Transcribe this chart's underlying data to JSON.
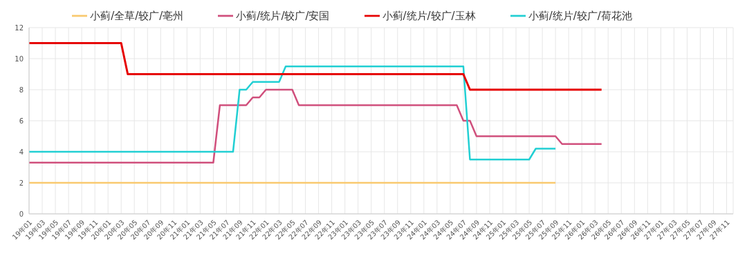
{
  "chart_data": {
    "type": "line",
    "categories": [
      "19年01",
      null,
      "19年03",
      null,
      "19年05",
      null,
      "19年07",
      null,
      "19年09",
      null,
      "19年11",
      null,
      "20年01",
      null,
      "20年03",
      null,
      "20年05",
      null,
      "20年07",
      null,
      "20年09",
      null,
      "20年11",
      null,
      "21年01",
      null,
      "21年03",
      null,
      "21年05",
      null,
      "21年07",
      null,
      "21年09",
      null,
      "21年11",
      null,
      "22年01",
      null,
      "22年03",
      null,
      "22年05",
      null,
      "22年07",
      null,
      "22年09",
      null,
      "22年11",
      null,
      "23年01",
      null,
      "23年03",
      null,
      "23年05",
      null,
      "23年07",
      null,
      "23年09",
      null,
      "23年11",
      null,
      "24年01",
      null,
      "24年03",
      null,
      "24年05",
      null,
      "24年07",
      null,
      "24年09",
      null,
      "24年11",
      null,
      "25年01",
      null,
      "25年03",
      null,
      "25年05",
      null,
      "25年07",
      null,
      "25年09",
      null,
      "25年11",
      null,
      "26年01",
      null,
      "26年03",
      null,
      "26年05",
      null,
      "26年07",
      null,
      "26年09",
      null,
      "26年11",
      null,
      "27年01",
      null,
      "27年03",
      null,
      "27年05",
      null,
      "27年07",
      null,
      "27年09",
      null,
      "27年11",
      null
    ],
    "series": [
      {
        "name": "小蓟/全草/较广/亳州",
        "color": "#f9c96e",
        "values": [
          2,
          2,
          2,
          2,
          2,
          2,
          2,
          2,
          2,
          2,
          2,
          2,
          2,
          2,
          2,
          2,
          2,
          2,
          2,
          2,
          2,
          2,
          2,
          2,
          2,
          2,
          2,
          2,
          2,
          2,
          2,
          2,
          2,
          2,
          2,
          2,
          2,
          2,
          2,
          2,
          2,
          2,
          2,
          2,
          2,
          2,
          2,
          2,
          2,
          2,
          2,
          2,
          2,
          2,
          2,
          2,
          2,
          2,
          2,
          2,
          2,
          2,
          2,
          2,
          2,
          2,
          2,
          2,
          2,
          2,
          2,
          2,
          2,
          2,
          2,
          2,
          2,
          2,
          2,
          2,
          2,
          null,
          null,
          null,
          null,
          null,
          null,
          null,
          null,
          null,
          null,
          null,
          null,
          null,
          null,
          null,
          null,
          null,
          null,
          null,
          null,
          null,
          null,
          null,
          null,
          null,
          null,
          null
        ]
      },
      {
        "name": "小蓟/统片/较广/安国",
        "color": "#d04f7c",
        "values": [
          3.3,
          3.3,
          3.3,
          3.3,
          3.3,
          3.3,
          3.3,
          3.3,
          3.3,
          3.3,
          3.3,
          3.3,
          3.3,
          3.3,
          3.3,
          3.3,
          3.3,
          3.3,
          3.3,
          3.3,
          3.3,
          3.3,
          3.3,
          3.3,
          3.3,
          3.3,
          3.3,
          3.3,
          3.3,
          7,
          7,
          7,
          7,
          7,
          7.5,
          7.5,
          8,
          8,
          8,
          8,
          8,
          7,
          7,
          7,
          7,
          7,
          7,
          7,
          7,
          7,
          7,
          7,
          7,
          7,
          7,
          7,
          7,
          7,
          7,
          7,
          7,
          7,
          7,
          7,
          7,
          7,
          6,
          6,
          5,
          5,
          5,
          5,
          5,
          5,
          5,
          5,
          5,
          5,
          5,
          5,
          5,
          4.5,
          4.5,
          4.5,
          4.5,
          4.5,
          4.5,
          4.5,
          null,
          null,
          null,
          null,
          null,
          null,
          null,
          null,
          null,
          null,
          null,
          null,
          null,
          null,
          null,
          null,
          null,
          null,
          null,
          null
        ]
      },
      {
        "name": "小蓟/统片/较广/荷花池",
        "color": "#21cfd3",
        "values": [
          4,
          4,
          4,
          4,
          4,
          4,
          4,
          4,
          4,
          4,
          4,
          4,
          4,
          4,
          4,
          4,
          4,
          4,
          4,
          4,
          4,
          4,
          4,
          4,
          4,
          4,
          4,
          4,
          4,
          4,
          4,
          4,
          8,
          8,
          8.5,
          8.5,
          8.5,
          8.5,
          8.5,
          9.5,
          9.5,
          9.5,
          9.5,
          9.5,
          9.5,
          9.5,
          9.5,
          9.5,
          9.5,
          9.5,
          9.5,
          9.5,
          9.5,
          9.5,
          9.5,
          9.5,
          9.5,
          9.5,
          9.5,
          9.5,
          9.5,
          9.5,
          9.5,
          9.5,
          9.5,
          9.5,
          9.5,
          3.5,
          3.5,
          3.5,
          3.5,
          3.5,
          3.5,
          3.5,
          3.5,
          3.5,
          3.5,
          4.2,
          4.2,
          4.2,
          4.2,
          null,
          null,
          null,
          null,
          null,
          null,
          null,
          null,
          null,
          null,
          null,
          null,
          null,
          null,
          null,
          null,
          null,
          null,
          null,
          null,
          null,
          null,
          null,
          null,
          null,
          null,
          null
        ]
      },
      {
        "name": "小蓟/统片/较广/玉林",
        "color": "#e60000",
        "values": [
          11,
          11,
          11,
          11,
          11,
          11,
          11,
          11,
          11,
          11,
          11,
          11,
          11,
          11,
          11,
          9,
          9,
          9,
          9,
          9,
          9,
          9,
          9,
          9,
          9,
          9,
          9,
          9,
          9,
          9,
          9,
          9,
          9,
          9,
          9,
          9,
          9,
          9,
          9,
          9,
          9,
          9,
          9,
          9,
          9,
          9,
          9,
          9,
          9,
          9,
          9,
          9,
          9,
          9,
          9,
          9,
          9,
          9,
          9,
          9,
          9,
          9,
          9,
          9,
          9,
          9,
          9,
          8,
          8,
          8,
          8,
          8,
          8,
          8,
          8,
          8,
          8,
          8,
          8,
          8,
          8,
          8,
          8,
          8,
          8,
          8,
          8,
          8,
          null,
          null,
          null,
          null,
          null,
          null,
          null,
          null,
          null,
          null,
          null,
          null,
          null,
          null,
          null,
          null,
          null,
          null,
          null,
          null
        ]
      }
    ],
    "ylim": [
      0,
      12
    ],
    "yticks": [
      0,
      2,
      4,
      6,
      8,
      10,
      12
    ],
    "grid": true,
    "legend": "top",
    "marker": "none"
  }
}
